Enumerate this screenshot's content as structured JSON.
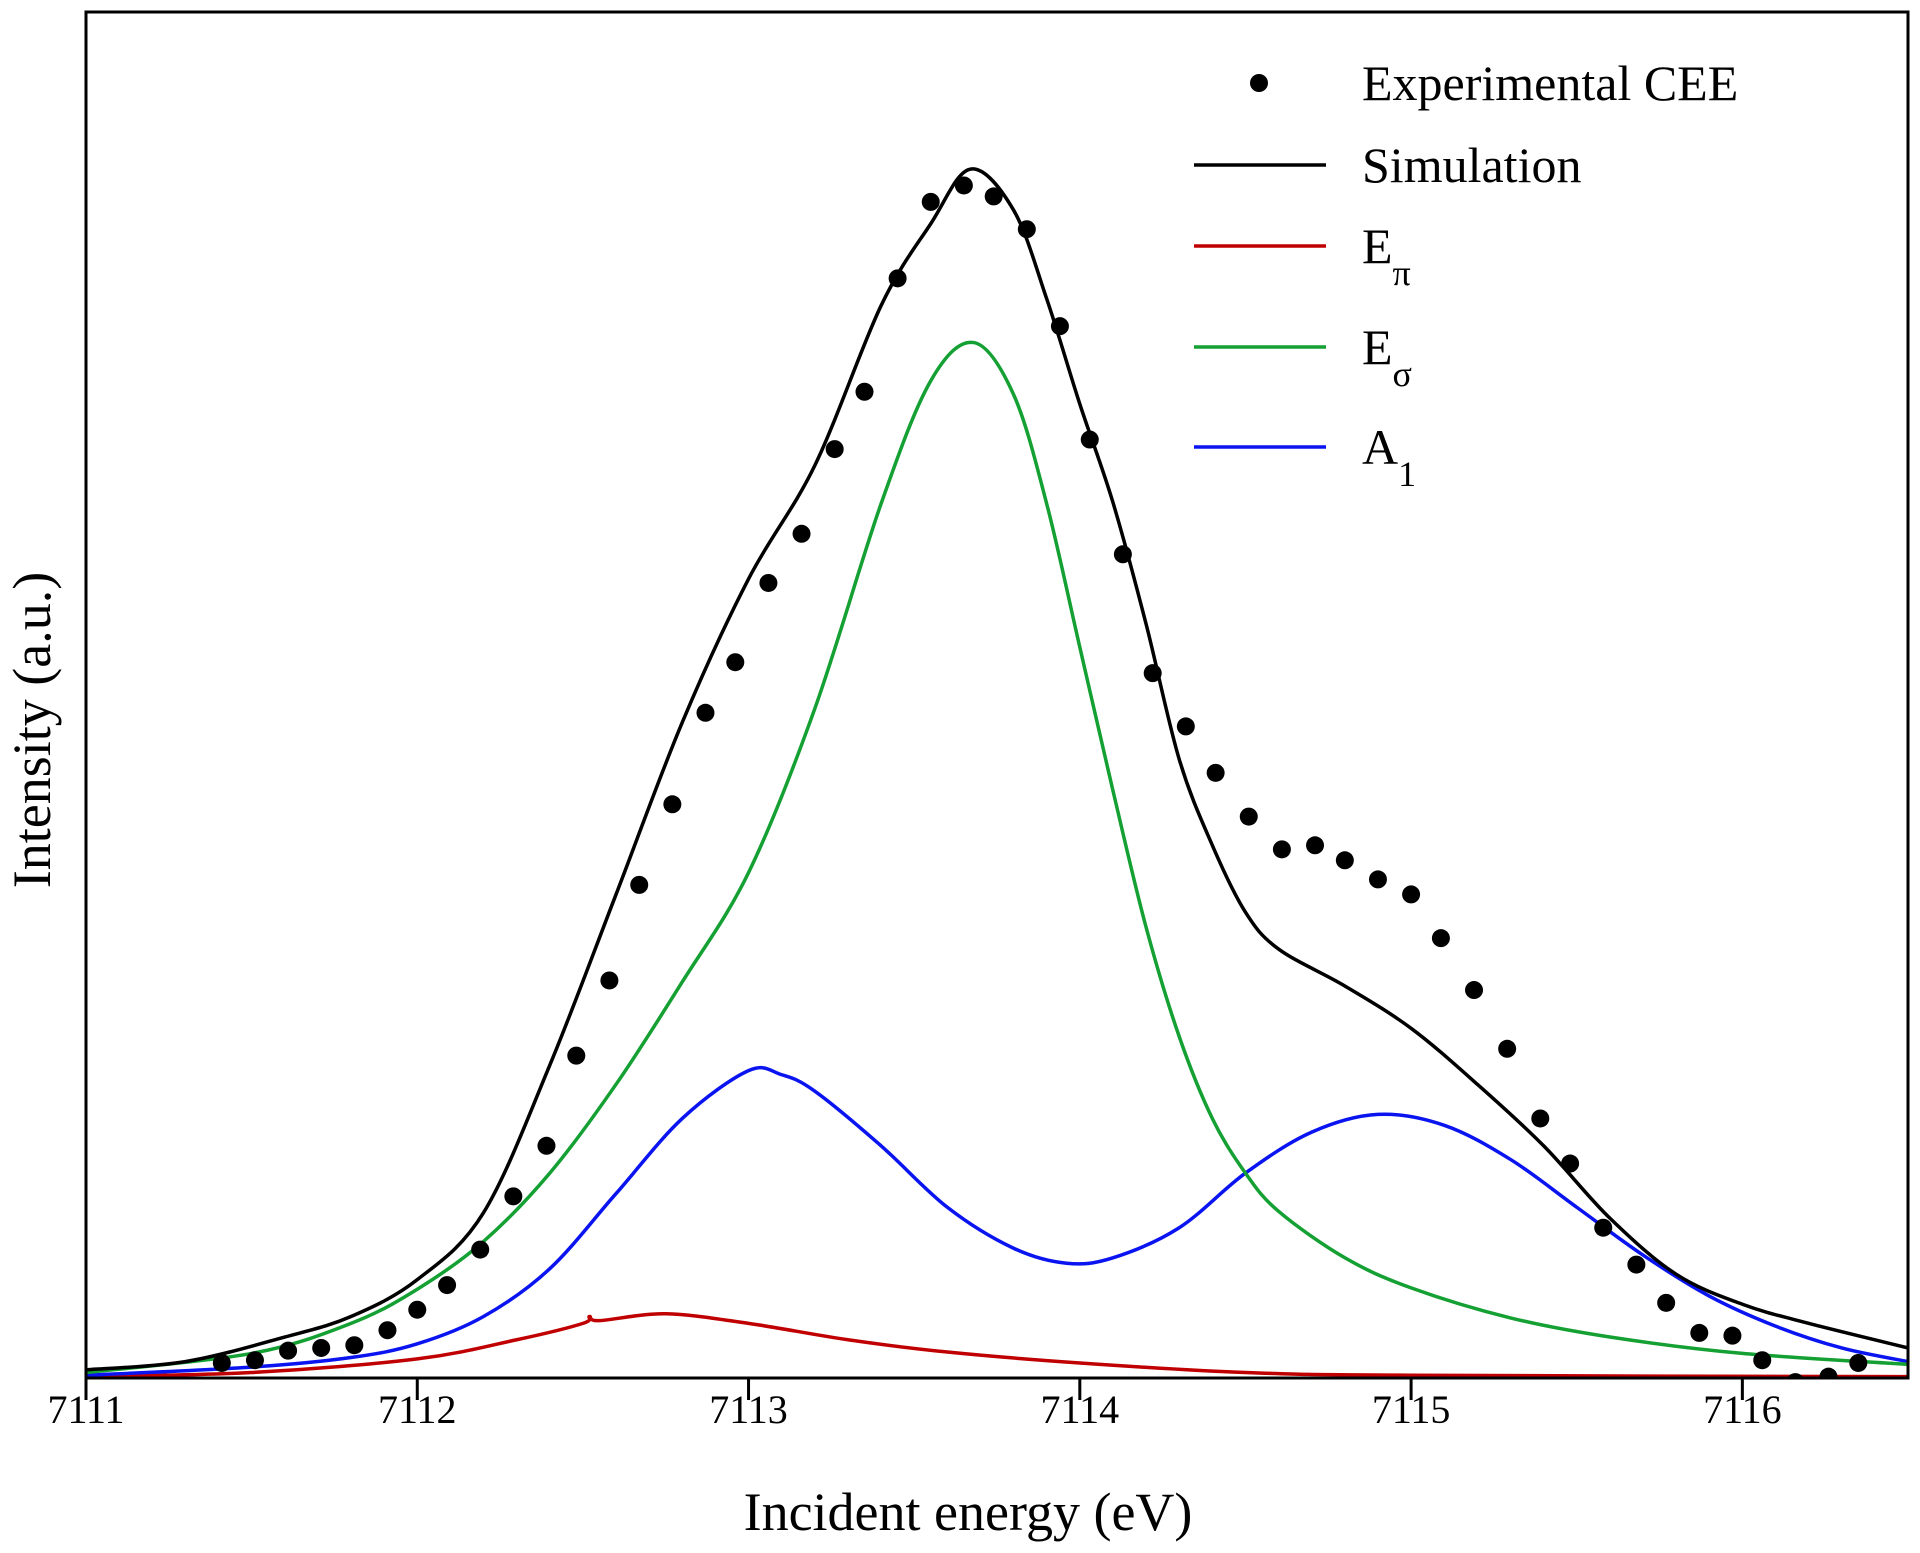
{
  "chart_data": {
    "type": "line",
    "title": "",
    "xlabel": "Incident energy (eV)",
    "ylabel": "Intensity (a.u.)",
    "xlim": [
      7111,
      7116.5
    ],
    "ylim": [
      0,
      1
    ],
    "xticks": [
      "7111",
      "7112",
      "7113",
      "7114",
      "7115",
      "7116"
    ],
    "yticks": [],
    "grid": false,
    "legend_position": "top-right",
    "series": [
      {
        "name": "Experimental CEE",
        "kind": "scatter",
        "color": "#000000",
        "x": [
          7111.41,
          7111.51,
          7111.61,
          7111.71,
          7111.81,
          7111.91,
          7112.0,
          7112.09,
          7112.19,
          7112.29,
          7112.39,
          7112.48,
          7112.58,
          7112.67,
          7112.77,
          7112.87,
          7112.96,
          7113.06,
          7113.16,
          7113.26,
          7113.35,
          7113.45,
          7113.55,
          7113.65,
          7113.74,
          7113.84,
          7113.94,
          7114.03,
          7114.13,
          7114.22,
          7114.32,
          7114.41,
          7114.51,
          7114.61,
          7114.71,
          7114.8,
          7114.9,
          7115.0,
          7115.09,
          7115.19,
          7115.29,
          7115.39,
          7115.48,
          7115.58,
          7115.68,
          7115.77,
          7115.87,
          7115.97,
          7116.06,
          7116.16,
          7116.26,
          7116.35
        ],
        "y": [
          0.011,
          0.013,
          0.02,
          0.022,
          0.024,
          0.035,
          0.05,
          0.068,
          0.094,
          0.133,
          0.17,
          0.236,
          0.291,
          0.361,
          0.42,
          0.487,
          0.524,
          0.582,
          0.618,
          0.68,
          0.722,
          0.805,
          0.861,
          0.873,
          0.865,
          0.841,
          0.77,
          0.687,
          0.603,
          0.516,
          0.477,
          0.443,
          0.411,
          0.387,
          0.39,
          0.379,
          0.365,
          0.354,
          0.322,
          0.284,
          0.241,
          0.19,
          0.157,
          0.11,
          0.083,
          0.055,
          0.033,
          0.031,
          0.013,
          -0.003,
          0.001,
          0.011
        ]
      },
      {
        "name": "Simulation",
        "kind": "line",
        "color": "#000000",
        "x": [
          7111.0,
          7111.3,
          7111.6,
          7111.8,
          7112.0,
          7112.2,
          7112.4,
          7112.6,
          7112.8,
          7113.0,
          7113.2,
          7113.4,
          7113.55,
          7113.67,
          7113.8,
          7113.9,
          7114.0,
          7114.1,
          7114.2,
          7114.3,
          7114.4,
          7114.5,
          7114.6,
          7114.8,
          7115.0,
          7115.2,
          7115.4,
          7115.6,
          7115.8,
          7116.0,
          7116.2,
          7116.5
        ],
        "y": [
          0.006,
          0.012,
          0.03,
          0.045,
          0.072,
          0.121,
          0.229,
          0.354,
          0.48,
          0.585,
          0.668,
          0.785,
          0.845,
          0.885,
          0.855,
          0.79,
          0.713,
          0.641,
          0.552,
          0.453,
          0.39,
          0.341,
          0.314,
          0.287,
          0.256,
          0.215,
          0.17,
          0.117,
          0.076,
          0.054,
          0.04,
          0.022
        ]
      },
      {
        "name": "E",
        "sub": "π",
        "kind": "line",
        "color": "#c00000",
        "x": [
          7111.0,
          7111.5,
          7112.0,
          7112.3,
          7112.5,
          7112.52,
          7112.55,
          7112.75,
          7113.0,
          7113.3,
          7113.6,
          7114.0,
          7114.5,
          7115.0,
          7116.5
        ],
        "y": [
          0.001,
          0.004,
          0.014,
          0.028,
          0.04,
          0.045,
          0.042,
          0.047,
          0.04,
          0.028,
          0.019,
          0.011,
          0.004,
          0.002,
          0.001
        ]
      },
      {
        "name": "E",
        "sub": "σ",
        "kind": "line",
        "color": "#14a032",
        "x": [
          7111.0,
          7111.5,
          7111.8,
          7112.0,
          7112.2,
          7112.4,
          7112.6,
          7112.8,
          7113.0,
          7113.2,
          7113.4,
          7113.55,
          7113.68,
          7113.8,
          7113.9,
          7114.0,
          7114.1,
          7114.2,
          7114.3,
          7114.4,
          7114.5,
          7114.6,
          7114.8,
          7115.0,
          7115.3,
          7115.6,
          7116.0,
          7116.5
        ],
        "y": [
          0.004,
          0.018,
          0.04,
          0.065,
          0.1,
          0.15,
          0.215,
          0.29,
          0.37,
          0.49,
          0.64,
          0.73,
          0.758,
          0.72,
          0.64,
          0.535,
          0.43,
          0.33,
          0.25,
          0.19,
          0.15,
          0.122,
          0.088,
          0.066,
          0.044,
          0.03,
          0.018,
          0.01
        ]
      },
      {
        "name": "A",
        "sub": "1",
        "kind": "line",
        "color": "#0a14f0",
        "x": [
          7111.0,
          7111.5,
          7111.8,
          7112.0,
          7112.2,
          7112.4,
          7112.6,
          7112.8,
          7113.0,
          7113.1,
          7113.2,
          7113.4,
          7113.6,
          7113.8,
          7113.96,
          7114.1,
          7114.3,
          7114.5,
          7114.7,
          7114.9,
          7115.1,
          7115.3,
          7115.5,
          7115.7,
          7115.9,
          7116.1,
          7116.3,
          7116.5
        ],
        "y": [
          0.002,
          0.008,
          0.015,
          0.025,
          0.045,
          0.08,
          0.135,
          0.19,
          0.225,
          0.222,
          0.21,
          0.17,
          0.125,
          0.095,
          0.084,
          0.088,
          0.11,
          0.15,
          0.18,
          0.193,
          0.185,
          0.16,
          0.125,
          0.09,
          0.06,
          0.038,
          0.022,
          0.012
        ]
      }
    ]
  }
}
